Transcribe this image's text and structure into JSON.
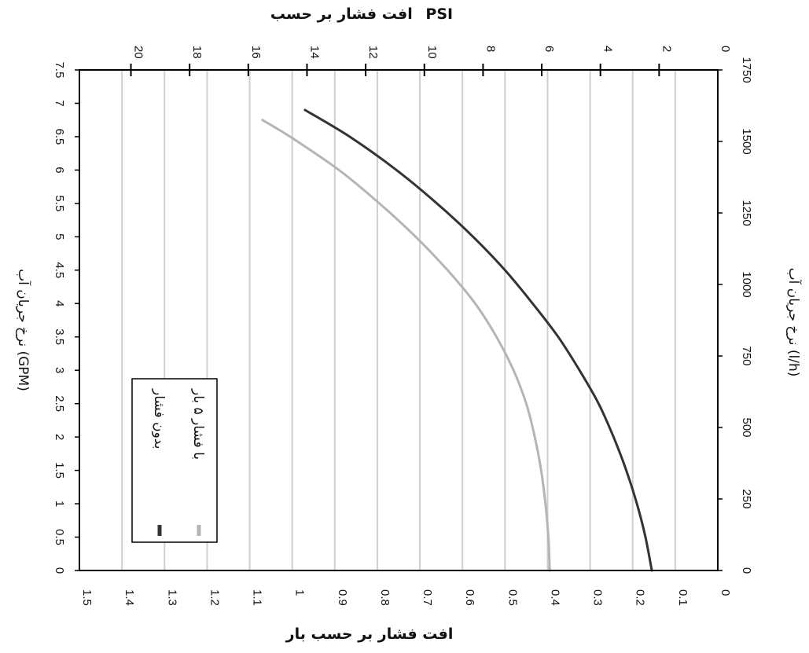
{
  "chart_data": {
    "type": "line",
    "orientation": "rotated-90-clockwise",
    "x_label_left": "نرخ جریان آب (GPM)",
    "x_label_right": "نرخ جریان آب (l/h)",
    "y_label_bottom": "افت فشار بر حسب بار",
    "y_label_top": "افت فشار بر حسب",
    "y_label_top_unit": "PSI",
    "x_gpm_ticks": [
      "0",
      "0.5",
      "1",
      "1.5",
      "2",
      "2.5",
      "3",
      "3.5",
      "4",
      "4.5",
      "5",
      "5.5",
      "6",
      "6.5",
      "7",
      "7.5"
    ],
    "x_lh_ticks": [
      "0",
      "250",
      "500",
      "750",
      "1000",
      "1250",
      "1500",
      "1750"
    ],
    "y_bar_ticks": [
      "0",
      "0.1",
      "0.2",
      "0.3",
      "0.4",
      "0.5",
      "0.6",
      "0.7",
      "0.8",
      "0.9",
      "1",
      "1.1",
      "1.2",
      "1.3",
      "1.4",
      "1.5"
    ],
    "y_psi_ticks": [
      "0",
      "2",
      "4",
      "6",
      "8",
      "10",
      "12",
      "14",
      "16",
      "18",
      "20"
    ],
    "xlim_gpm": [
      0,
      7.5
    ],
    "xlim_lh": [
      0,
      1750
    ],
    "ylim_bar": [
      0,
      1.5
    ],
    "ylim_psi": [
      0,
      21.75
    ],
    "grid": true,
    "legend_position": "lower-left (as printed in rotated view)",
    "series": [
      {
        "name": "بدون فشار",
        "color": "#333333",
        "x": [
          0,
          0.5,
          1,
          1.5,
          2,
          2.5,
          3,
          3.5,
          4,
          4.5,
          5,
          5.5,
          6,
          6.5,
          6.9
        ],
        "y": [
          0.155,
          0.17,
          0.19,
          0.215,
          0.245,
          0.28,
          0.325,
          0.375,
          0.435,
          0.5,
          0.575,
          0.66,
          0.755,
          0.865,
          0.97
        ]
      },
      {
        "name": "با فشار ۵ بار",
        "color": "#b5b5b5",
        "x": [
          0,
          0.5,
          1,
          1.5,
          2,
          2.5,
          3,
          3.5,
          4,
          4.5,
          5,
          5.5,
          6,
          6.5,
          6.75
        ],
        "y": [
          0.395,
          0.398,
          0.405,
          0.415,
          0.43,
          0.45,
          0.48,
          0.52,
          0.57,
          0.635,
          0.71,
          0.795,
          0.89,
          1.005,
          1.07
        ]
      }
    ]
  }
}
